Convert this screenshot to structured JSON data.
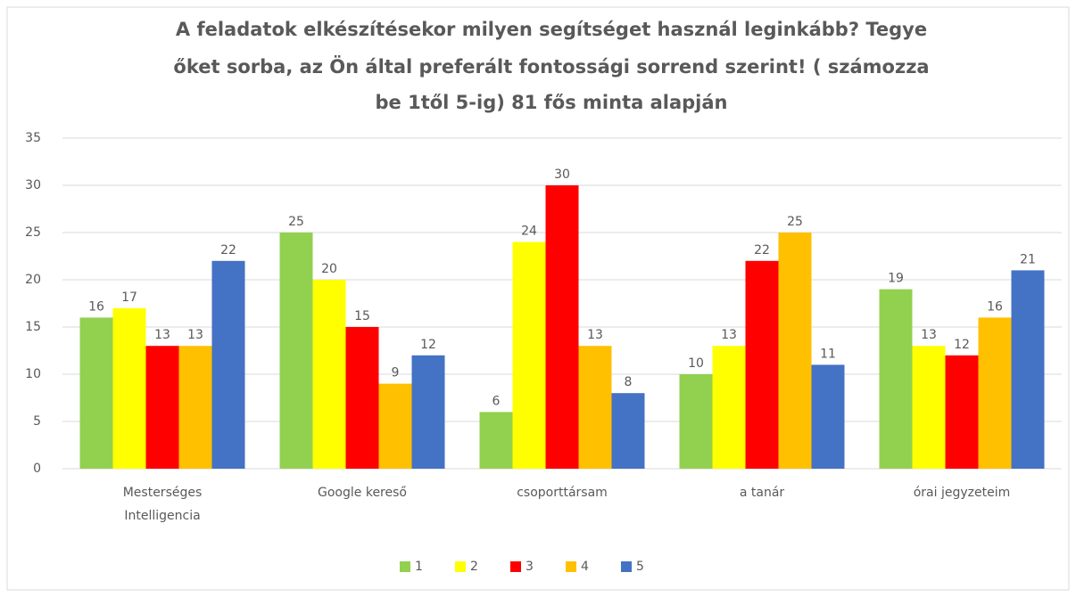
{
  "chart_data": {
    "type": "bar",
    "title": [
      "A feladatok elkészítésekor milyen segítséget használ leginkább? Tegye",
      "őket sorba, az Ön által preferált fontossági sorrend szerint! ( számozza",
      "be 1től 5-ig) 81 fős minta alapján"
    ],
    "categories": [
      "Mesterséges Intelligencia",
      "Google kereső",
      "csoporttársam",
      "a tanár",
      "órai jegyzeteim"
    ],
    "series": [
      {
        "name": "1",
        "color": "#92d050",
        "values": [
          16,
          25,
          6,
          10,
          19
        ]
      },
      {
        "name": "2",
        "color": "#ffff00",
        "values": [
          17,
          20,
          24,
          13,
          13
        ]
      },
      {
        "name": "3",
        "color": "#ff0000",
        "values": [
          13,
          15,
          30,
          22,
          12
        ]
      },
      {
        "name": "4",
        "color": "#ffc000",
        "values": [
          13,
          9,
          13,
          25,
          16
        ]
      },
      {
        "name": "5",
        "color": "#4472c4",
        "values": [
          22,
          12,
          8,
          11,
          21
        ]
      }
    ],
    "ylim": [
      0,
      35
    ],
    "yticks": [
      0,
      5,
      10,
      15,
      20,
      25,
      30,
      35
    ],
    "grid": true,
    "legend": "bottom"
  }
}
